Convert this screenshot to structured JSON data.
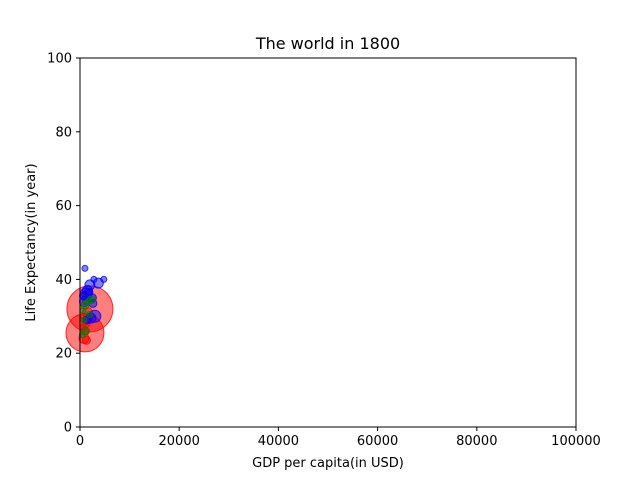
{
  "chart_data": {
    "type": "scatter",
    "title": "The world in 1800",
    "xlabel": "GDP per capita(in USD)",
    "ylabel": "Life Expectancy(in year)",
    "xlim": [
      0,
      100000
    ],
    "ylim": [
      0,
      100
    ],
    "xticks": [
      0,
      20000,
      40000,
      60000,
      80000,
      100000
    ],
    "xtick_labels": [
      "0",
      "20000",
      "40000",
      "60000",
      "80000",
      "100000"
    ],
    "yticks": [
      0,
      20,
      40,
      60,
      80,
      100
    ],
    "ytick_labels": [
      "0",
      "20",
      "40",
      "60",
      "80",
      "100"
    ],
    "grid": false,
    "alpha": 0.5,
    "colors": {
      "red": "#ff0000",
      "blue": "#0000ff",
      "green": "#008000"
    },
    "points": [
      {
        "x": 1000,
        "y": 25.5,
        "r": 19,
        "color": "red"
      },
      {
        "x": 2000,
        "y": 32,
        "r": 23,
        "color": "red"
      },
      {
        "x": 800,
        "y": 24,
        "r": 5,
        "color": "red"
      },
      {
        "x": 900,
        "y": 26,
        "r": 4,
        "color": "red"
      },
      {
        "x": 1200,
        "y": 28,
        "r": 4,
        "color": "red"
      },
      {
        "x": 700,
        "y": 30,
        "r": 3,
        "color": "red"
      },
      {
        "x": 1500,
        "y": 31,
        "r": 5,
        "color": "red"
      },
      {
        "x": 1100,
        "y": 34,
        "r": 3,
        "color": "red"
      },
      {
        "x": 600,
        "y": 27,
        "r": 3,
        "color": "red"
      },
      {
        "x": 1300,
        "y": 23.5,
        "r": 4,
        "color": "red"
      },
      {
        "x": 900,
        "y": 36,
        "r": 3,
        "color": "red"
      },
      {
        "x": 1700,
        "y": 29,
        "r": 3,
        "color": "red"
      },
      {
        "x": 1000,
        "y": 43,
        "r": 3,
        "color": "blue"
      },
      {
        "x": 3700,
        "y": 39,
        "r": 5,
        "color": "blue"
      },
      {
        "x": 4800,
        "y": 40,
        "r": 3,
        "color": "blue"
      },
      {
        "x": 2800,
        "y": 40,
        "r": 3,
        "color": "blue"
      },
      {
        "x": 2000,
        "y": 38.5,
        "r": 5,
        "color": "blue"
      },
      {
        "x": 1500,
        "y": 37,
        "r": 5,
        "color": "blue"
      },
      {
        "x": 1200,
        "y": 36,
        "r": 6,
        "color": "blue"
      },
      {
        "x": 2500,
        "y": 35,
        "r": 4,
        "color": "blue"
      },
      {
        "x": 900,
        "y": 34,
        "r": 5,
        "color": "blue"
      },
      {
        "x": 3000,
        "y": 30,
        "r": 6,
        "color": "blue"
      },
      {
        "x": 2200,
        "y": 29.5,
        "r": 5,
        "color": "blue"
      },
      {
        "x": 1400,
        "y": 29,
        "r": 4,
        "color": "blue"
      },
      {
        "x": 700,
        "y": 35.5,
        "r": 4,
        "color": "blue"
      },
      {
        "x": 1800,
        "y": 36.5,
        "r": 4,
        "color": "blue"
      },
      {
        "x": 2600,
        "y": 33.5,
        "r": 4,
        "color": "blue"
      },
      {
        "x": 1000,
        "y": 33,
        "r": 4,
        "color": "green"
      },
      {
        "x": 2300,
        "y": 34.5,
        "r": 4,
        "color": "green"
      },
      {
        "x": 1600,
        "y": 34,
        "r": 3,
        "color": "green"
      },
      {
        "x": 800,
        "y": 29,
        "r": 3,
        "color": "green"
      },
      {
        "x": 600,
        "y": 31.5,
        "r": 3,
        "color": "green"
      },
      {
        "x": 1100,
        "y": 26,
        "r": 4,
        "color": "green"
      },
      {
        "x": 500,
        "y": 25,
        "r": 3,
        "color": "green"
      },
      {
        "x": 1900,
        "y": 30.5,
        "r": 3,
        "color": "green"
      }
    ]
  }
}
